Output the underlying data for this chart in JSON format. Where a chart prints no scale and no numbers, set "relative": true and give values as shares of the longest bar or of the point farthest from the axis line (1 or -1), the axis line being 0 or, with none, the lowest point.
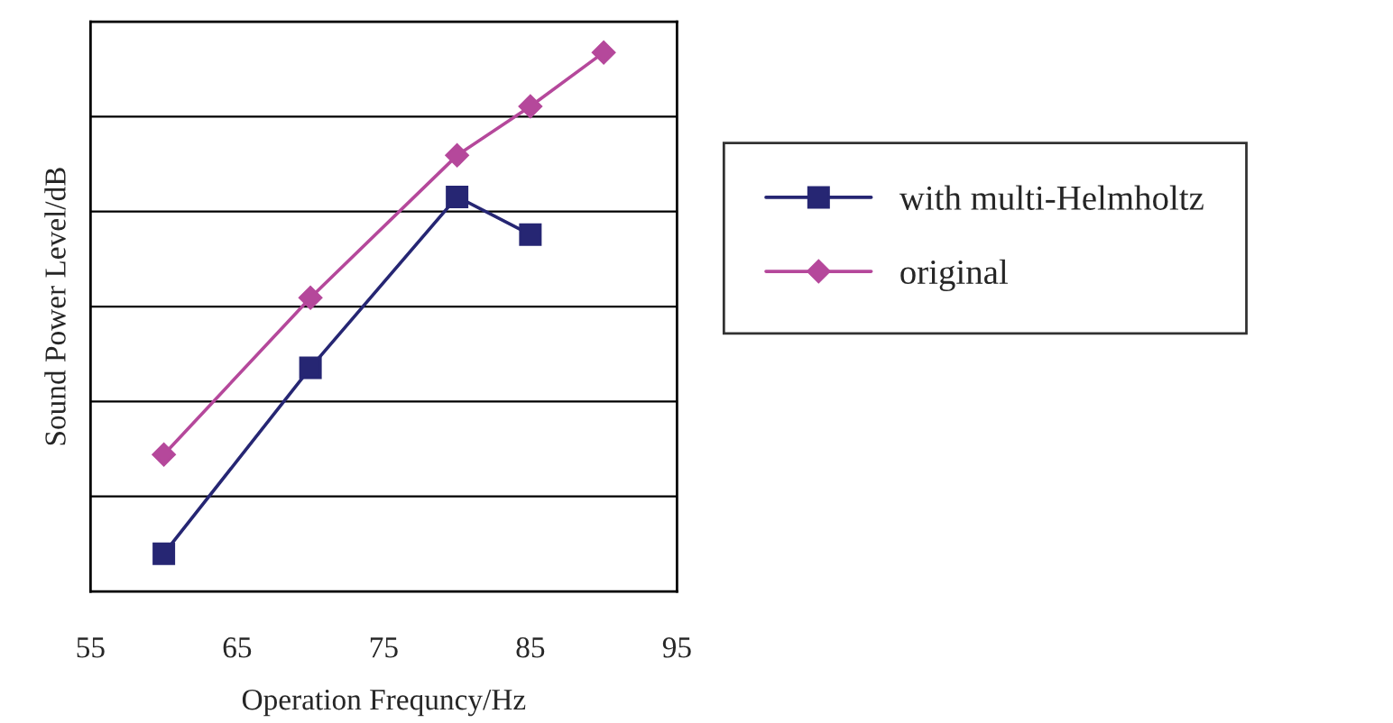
{
  "chart_data": {
    "type": "line",
    "xlabel": "Operation Frequncy/Hz",
    "ylabel": "Sound Power Level/dB",
    "relative": true,
    "xlim": [
      55,
      95
    ],
    "xticks": [
      55,
      65,
      75,
      85,
      95
    ],
    "grid": "y",
    "legend": "right",
    "series": [
      {
        "name": "with multi-Helmholtz",
        "color": "#262673",
        "marker": "square",
        "x": [
          60,
          70,
          80,
          85
        ],
        "values": [
          0.07,
          0.415,
          0.732,
          0.662
        ]
      },
      {
        "name": "original",
        "color": "#b5489b",
        "marker": "diamond",
        "x": [
          60,
          70,
          80,
          85,
          90
        ],
        "values": [
          0.254,
          0.545,
          0.809,
          0.9,
          1.0
        ]
      }
    ]
  }
}
